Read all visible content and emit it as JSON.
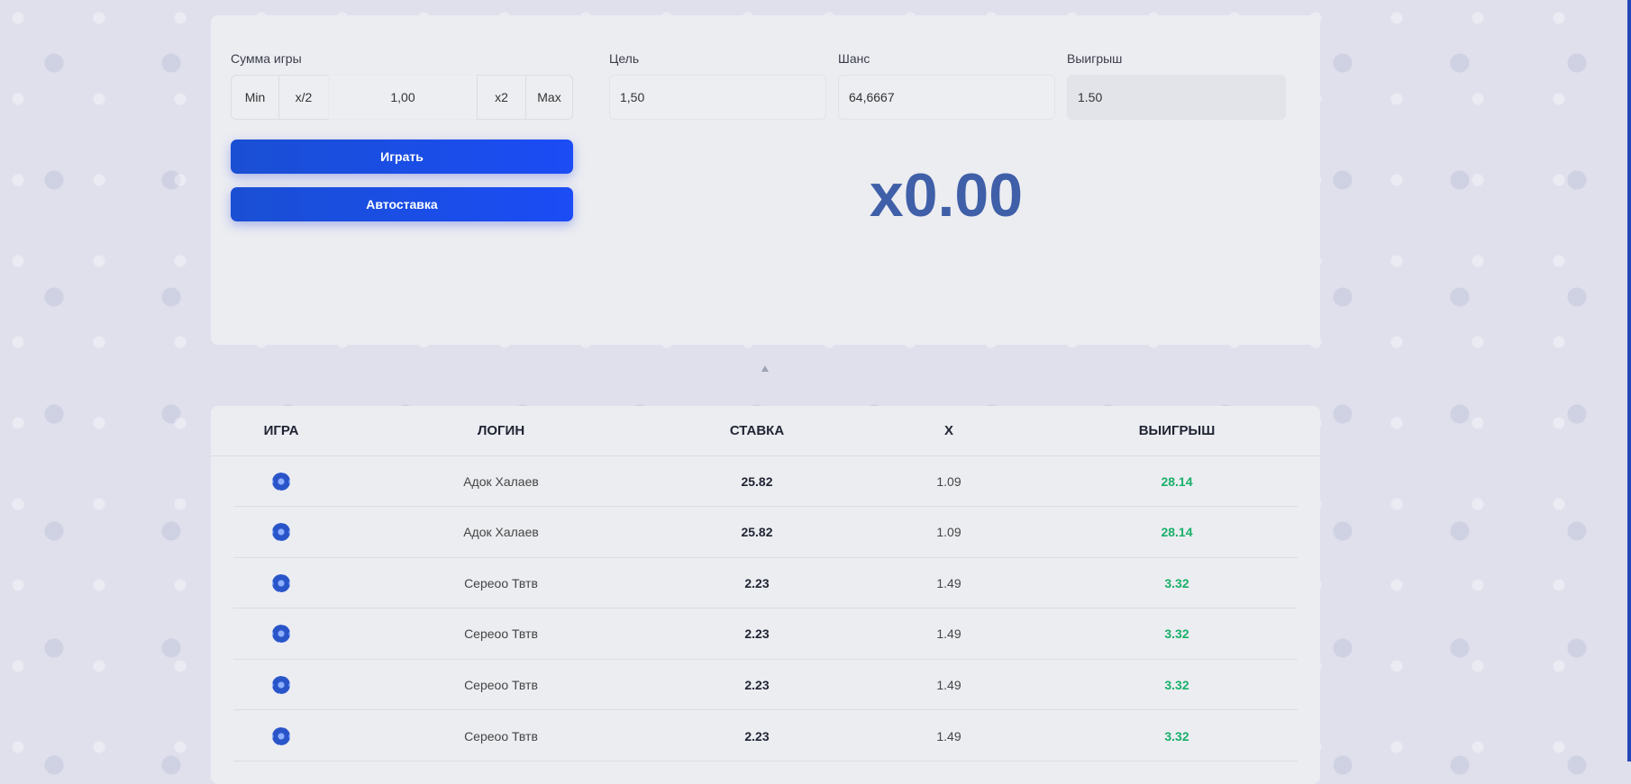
{
  "bet": {
    "label": "Сумма игры",
    "min": "Min",
    "half": "x/2",
    "value": "1,00",
    "double": "x2",
    "max": "Max"
  },
  "target": {
    "label": "Цель",
    "value": "1,50"
  },
  "chance": {
    "label": "Шанс",
    "value": "64,6667"
  },
  "payout": {
    "label": "Выигрыш",
    "value": "1.50"
  },
  "buttons": {
    "play": "Играть",
    "auto": "Автоставка"
  },
  "multiplier": "x0.00",
  "colors": {
    "accent": "#1b4cf5",
    "win": "#19b06a",
    "multiplier": "#3f5fa8"
  },
  "table": {
    "headers": [
      "ИГРА",
      "ЛОГИН",
      "СТАВКА",
      "X",
      "ВЫИГРЫШ"
    ],
    "rows": [
      {
        "game_icon": "gear-icon",
        "login": "Адок Халаев",
        "bet": "25.82",
        "x": "1.09",
        "win": "28.14"
      },
      {
        "game_icon": "gear-icon",
        "login": "Адок Халаев",
        "bet": "25.82",
        "x": "1.09",
        "win": "28.14"
      },
      {
        "game_icon": "gear-icon",
        "login": "Сереоо Твтв",
        "bet": "2.23",
        "x": "1.49",
        "win": "3.32"
      },
      {
        "game_icon": "gear-icon",
        "login": "Сереоо Твтв",
        "bet": "2.23",
        "x": "1.49",
        "win": "3.32"
      },
      {
        "game_icon": "gear-icon",
        "login": "Сереоо Твтв",
        "bet": "2.23",
        "x": "1.49",
        "win": "3.32"
      },
      {
        "game_icon": "gear-icon",
        "login": "Сереоо Твтв",
        "bet": "2.23",
        "x": "1.49",
        "win": "3.32"
      }
    ]
  }
}
